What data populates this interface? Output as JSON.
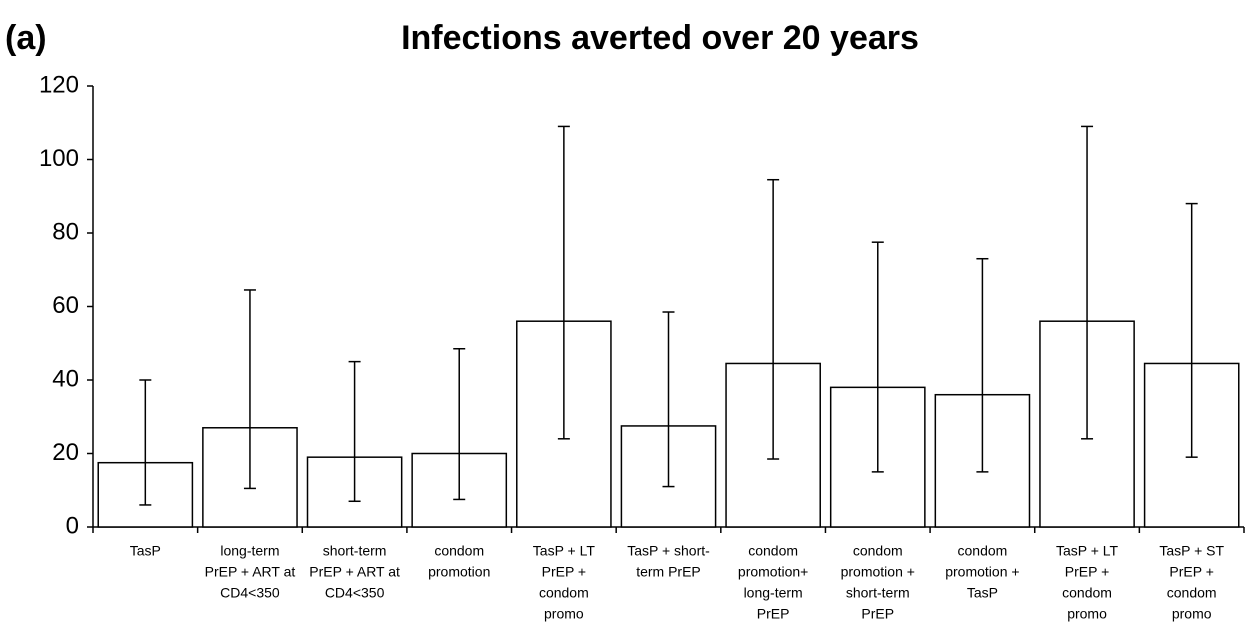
{
  "chart_data": {
    "type": "bar",
    "panel_label": "(a)",
    "title": "Infections averted over 20 years",
    "categories": [
      [
        "TasP"
      ],
      [
        "long-term",
        "PrEP + ART at",
        "CD4<350"
      ],
      [
        "short-term",
        "PrEP + ART at",
        "CD4<350"
      ],
      [
        "condom",
        "promotion"
      ],
      [
        "TasP + LT",
        "PrEP +",
        "condom",
        "promo"
      ],
      [
        "TasP + short-",
        "term PrEP"
      ],
      [
        "condom",
        "promotion+",
        "long-term",
        "PrEP"
      ],
      [
        "condom",
        "promotion +",
        "short-term",
        "PrEP"
      ],
      [
        "condom",
        "promotion +",
        "TasP"
      ],
      [
        "TasP + LT",
        "PrEP +",
        "condom",
        "promo"
      ],
      [
        "TasP + ST",
        "PrEP +",
        "condom",
        "promo"
      ]
    ],
    "values": [
      17.5,
      27,
      19,
      20,
      56,
      27.5,
      44.5,
      38,
      36,
      56,
      44.5
    ],
    "lower": [
      6,
      10.5,
      7,
      7.5,
      24,
      11,
      18.5,
      15,
      15,
      24,
      19
    ],
    "upper": [
      40,
      64.5,
      45,
      48.5,
      109,
      58.5,
      94.5,
      77.5,
      73,
      109,
      88
    ],
    "color": "#ffffff",
    "ylim": [
      0,
      120
    ],
    "yticks": [
      0,
      20,
      40,
      60,
      80,
      100,
      120
    ],
    "grid": false
  }
}
